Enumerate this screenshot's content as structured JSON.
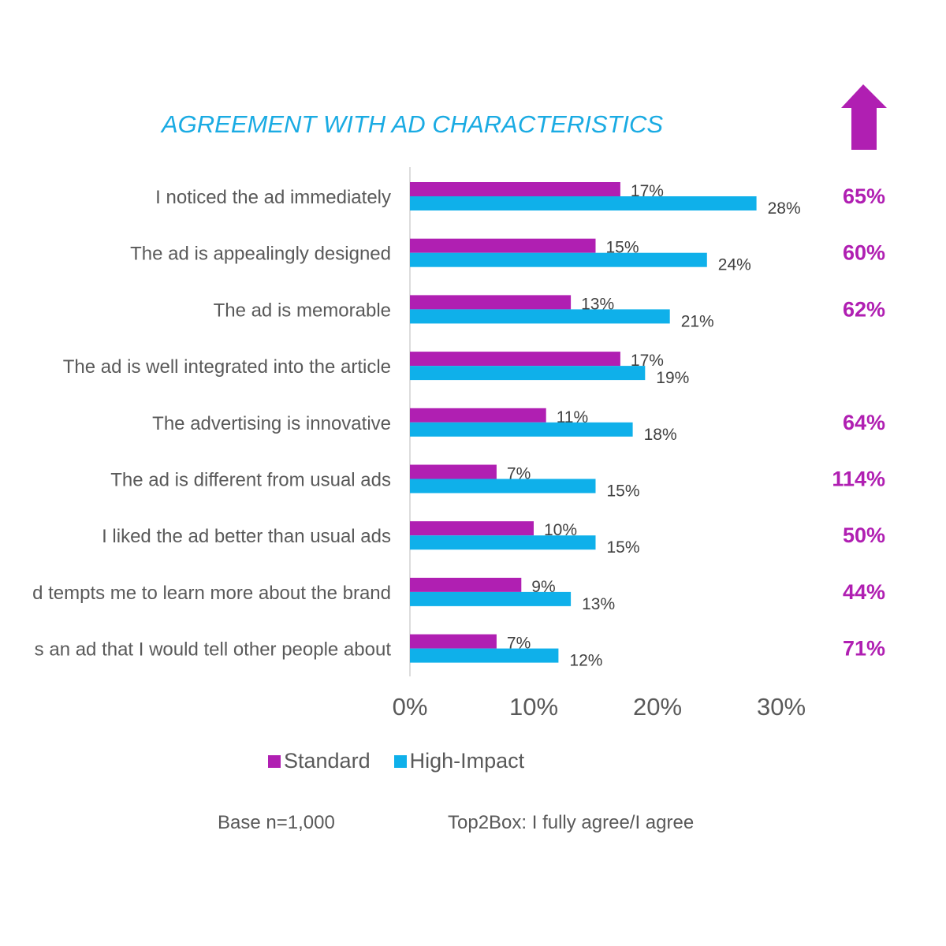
{
  "colors": {
    "standard": "#b01fb2",
    "high_impact": "#0fb0ea",
    "title": "#1aabe3",
    "uplift": "#b01fb2"
  },
  "chart_data": {
    "type": "bar",
    "orientation": "horizontal",
    "title": "AGREEMENT WITH AD CHARACTERISTICS",
    "categories": [
      "I noticed the ad immediately",
      "The ad is appealingly designed",
      "The ad is memorable",
      "The ad is  well integrated into the article",
      "The advertising is innovative",
      "The ad is different from usual ads",
      "I liked the ad better than usual ads",
      "d tempts me to learn more about the brand",
      "s an ad that I would tell other people about"
    ],
    "series": [
      {
        "name": "Standard",
        "values": [
          17,
          15,
          13,
          17,
          11,
          7,
          10,
          9,
          7
        ],
        "labels": [
          "17%",
          "15%",
          "13%",
          "17%",
          "11%",
          "7%",
          "10%",
          "9%",
          "7%"
        ]
      },
      {
        "name": "High-Impact",
        "values": [
          28,
          24,
          21,
          19,
          18,
          15,
          15,
          13,
          12
        ],
        "labels": [
          "28%",
          "24%",
          "21%",
          "19%",
          "18%",
          "15%",
          "15%",
          "13%",
          "12%"
        ]
      }
    ],
    "uplift_labels": [
      "65%",
      "60%",
      "62%",
      "",
      "64%",
      "114%",
      "50%",
      "44%",
      "71%"
    ],
    "xlim": [
      0,
      30
    ],
    "xticks": [
      0,
      10,
      20,
      30
    ],
    "xtick_labels": [
      "0%",
      "10%",
      "20%",
      "30%"
    ],
    "legend_position": "bottom",
    "grid": false
  },
  "legend": {
    "standard_label": "Standard",
    "high_impact_label": "High-Impact"
  },
  "footnotes": {
    "base": "Base n=1,000",
    "top2box": "Top2Box: I fully agree/I agree"
  },
  "uplift_icon": "arrow-up-icon"
}
